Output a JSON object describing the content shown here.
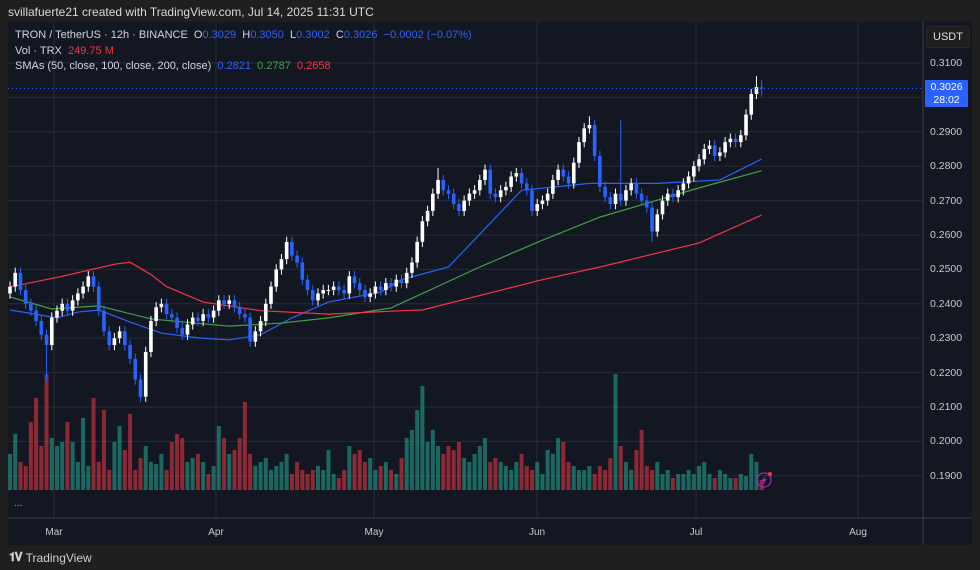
{
  "credit": "svillafuerte21 created with TradingView.com, Jul 14, 2025 11:31 UTC",
  "legend": {
    "symbol": "TRON / TetherUS · 12h · BINANCE",
    "o_label": "O",
    "o": "0.3029",
    "h_label": "H",
    "h": "0.3050",
    "l_label": "L",
    "l": "0.3002",
    "c_label": "C",
    "c": "0.3026",
    "change": "−0.0002 (−0.07%)",
    "vol_label": "Vol · TRX",
    "vol": "249.75 M",
    "sma_label": "SMAs (50, close, 100, close, 200, close)",
    "sma50": "0.2821",
    "sma100": "0.2787",
    "sma200": "0.2658"
  },
  "currency": "USDT",
  "current_price": {
    "value": "0.3026",
    "countdown": "28:02"
  },
  "more_icon": "...",
  "brand": "TradingView",
  "colors": {
    "up": "#ffffff",
    "down": "#2962ff",
    "vol_up": "#22ab94",
    "vol_down": "#f23645",
    "sma50": "#2962ff",
    "sma100": "#43a047",
    "sma200": "#f23645",
    "accent": "#2962ff"
  },
  "chart_data": {
    "type": "candlestick",
    "title": "TRON / TetherUS · 12h · BINANCE",
    "ylim": [
      0.185,
      0.315
    ],
    "y_ticks": [
      "0.3100",
      "0.3000",
      "0.2900",
      "0.2800",
      "0.2700",
      "0.2600",
      "0.2500",
      "0.2400",
      "0.2300",
      "0.2200",
      "0.2100",
      "0.2000",
      "0.1900"
    ],
    "x_ticks": [
      "Mar",
      "Apr",
      "May",
      "Jun",
      "Jul",
      "Aug"
    ],
    "start_date": "2025-02-21",
    "interval": "1 day (approx.)",
    "first_open": 0.243,
    "closes": [
      0.245,
      0.249,
      0.244,
      0.24,
      0.238,
      0.235,
      0.231,
      0.228,
      0.236,
      0.238,
      0.24,
      0.238,
      0.241,
      0.243,
      0.245,
      0.248,
      0.245,
      0.238,
      0.232,
      0.228,
      0.23,
      0.232,
      0.228,
      0.224,
      0.218,
      0.213,
      0.226,
      0.235,
      0.239,
      0.24,
      0.237,
      0.236,
      0.233,
      0.231,
      0.234,
      0.236,
      0.235,
      0.237,
      0.236,
      0.238,
      0.241,
      0.24,
      0.241,
      0.239,
      0.237,
      0.236,
      0.229,
      0.232,
      0.235,
      0.24,
      0.245,
      0.25,
      0.253,
      0.258,
      0.254,
      0.252,
      0.247,
      0.244,
      0.241,
      0.243,
      0.244,
      0.244,
      0.245,
      0.244,
      0.243,
      0.248,
      0.246,
      0.244,
      0.242,
      0.243,
      0.245,
      0.244,
      0.246,
      0.245,
      0.247,
      0.246,
      0.249,
      0.252,
      0.258,
      0.264,
      0.267,
      0.272,
      0.276,
      0.273,
      0.272,
      0.269,
      0.267,
      0.27,
      0.272,
      0.273,
      0.276,
      0.279,
      0.272,
      0.271,
      0.273,
      0.274,
      0.277,
      0.278,
      0.275,
      0.273,
      0.267,
      0.269,
      0.27,
      0.272,
      0.276,
      0.279,
      0.277,
      0.275,
      0.281,
      0.287,
      0.291,
      0.292,
      0.283,
      0.274,
      0.271,
      0.269,
      0.272,
      0.27,
      0.273,
      0.275,
      0.272,
      0.27,
      0.268,
      0.261,
      0.266,
      0.27,
      0.272,
      0.271,
      0.273,
      0.275,
      0.277,
      0.28,
      0.282,
      0.285,
      0.286,
      0.283,
      0.284,
      0.287,
      0.288,
      0.287,
      0.289,
      0.295,
      0.301,
      0.303,
      0.3026
    ],
    "last_candle": {
      "open": 0.3029,
      "high": 0.305,
      "low": 0.3002,
      "close": 0.3026
    },
    "notable_wicks": [
      {
        "i": 7,
        "low": 0.2175
      },
      {
        "i": 25,
        "low": 0.2115
      },
      {
        "i": 53,
        "high": 0.2595
      },
      {
        "i": 82,
        "high": 0.2795
      },
      {
        "i": 111,
        "high": 0.2945
      },
      {
        "i": 117,
        "high": 0.2935
      },
      {
        "i": 123,
        "low": 0.258
      },
      {
        "i": 143,
        "high": 0.3062
      }
    ],
    "volume_millions": [
      900,
      1400,
      700,
      600,
      1700,
      2300,
      1100,
      2900,
      1300,
      1100,
      1200,
      1700,
      1200,
      700,
      1800,
      600,
      2300,
      700,
      2000,
      500,
      1200,
      1600,
      1000,
      1900,
      500,
      800,
      1100,
      700,
      650,
      900,
      500,
      1200,
      1400,
      1300,
      700,
      800,
      900,
      700,
      400,
      600,
      1600,
      1300,
      900,
      1000,
      1300,
      2200,
      900,
      600,
      700,
      800,
      500,
      600,
      700,
      900,
      400,
      700,
      500,
      400,
      500,
      600,
      500,
      1000,
      400,
      300,
      500,
      1100,
      900,
      1000,
      700,
      800,
      500,
      600,
      700,
      500,
      400,
      800,
      1300,
      1500,
      2000,
      2600,
      1200,
      1500,
      1100,
      900,
      1100,
      1000,
      1200,
      800,
      700,
      900,
      1100,
      1300,
      700,
      800,
      700,
      600,
      500,
      700,
      900,
      600,
      500,
      700,
      400,
      1000,
      900,
      1300,
      1200,
      700,
      600,
      500,
      500,
      600,
      400,
      600,
      500,
      800,
      2900,
      1100,
      700,
      500,
      1000,
      1500,
      600,
      500,
      700,
      400,
      500,
      300,
      400,
      400,
      500,
      400,
      600,
      700,
      400,
      300,
      500,
      400,
      300,
      300,
      400,
      350,
      900,
      700,
      250
    ],
    "series": [
      {
        "name": "SMA 50",
        "points": [
          [
            0,
            0.2382
          ],
          [
            6,
            0.2367
          ],
          [
            9,
            0.2359
          ],
          [
            13,
            0.2376
          ],
          [
            17,
            0.2382
          ],
          [
            23,
            0.2347
          ],
          [
            29,
            0.2315
          ],
          [
            36,
            0.2301
          ],
          [
            42,
            0.2295
          ],
          [
            48,
            0.231
          ],
          [
            54,
            0.2359
          ],
          [
            61,
            0.2405
          ],
          [
            71,
            0.2434
          ],
          [
            75,
            0.247
          ],
          [
            84,
            0.2507
          ],
          [
            98,
            0.273
          ],
          [
            111,
            0.275
          ],
          [
            124,
            0.275
          ],
          [
            136,
            0.276
          ],
          [
            144,
            0.2821
          ]
        ]
      },
      {
        "name": "SMA 100",
        "points": [
          [
            0,
            0.242
          ],
          [
            8,
            0.2385
          ],
          [
            13,
            0.239
          ],
          [
            17,
            0.2394
          ],
          [
            27,
            0.2356
          ],
          [
            42,
            0.2335
          ],
          [
            52,
            0.2344
          ],
          [
            61,
            0.2359
          ],
          [
            73,
            0.2388
          ],
          [
            90,
            0.2507
          ],
          [
            102,
            0.2585
          ],
          [
            113,
            0.2652
          ],
          [
            132,
            0.2737
          ],
          [
            144,
            0.2787
          ]
        ]
      },
      {
        "name": "SMA 200",
        "points": [
          [
            0,
            0.2449
          ],
          [
            10,
            0.248
          ],
          [
            20,
            0.2515
          ],
          [
            23,
            0.2521
          ],
          [
            27,
            0.2485
          ],
          [
            30,
            0.245
          ],
          [
            37,
            0.2405
          ],
          [
            48,
            0.238
          ],
          [
            61,
            0.237
          ],
          [
            75,
            0.238
          ],
          [
            79,
            0.2382
          ],
          [
            102,
            0.247
          ],
          [
            113,
            0.2507
          ],
          [
            132,
            0.2577
          ],
          [
            144,
            0.2658
          ]
        ]
      }
    ]
  }
}
